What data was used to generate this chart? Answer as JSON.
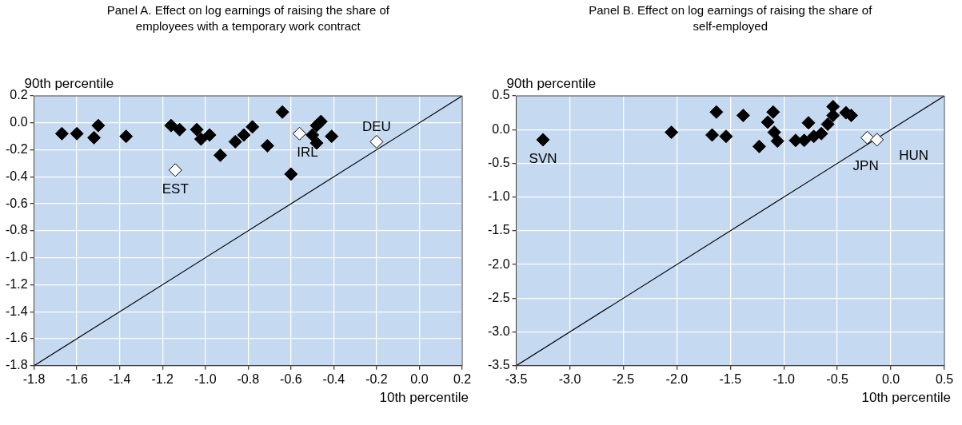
{
  "chart_data": [
    {
      "type": "scatter",
      "title": "Panel A. Effect on log earnings of raising the share of employees with a temporary work contract",
      "xlabel": "10th percentile",
      "ylabel": "90th percentile",
      "xlim": [
        -1.8,
        0.2
      ],
      "xticks": [
        -1.8,
        -1.6,
        -1.4,
        -1.2,
        {
          "value": -1,
          "label": "-1.0"
        },
        -0.8,
        -0.6,
        -0.4,
        -0.2,
        {
          "value": 0,
          "label": "0.0"
        },
        0.2
      ],
      "ylim": [
        -1.8,
        0.2
      ],
      "yticks": [
        -1.8,
        -1.6,
        -1.4,
        -1.2,
        {
          "value": -1,
          "label": "-1.0"
        },
        -0.8,
        -0.6,
        -0.4,
        -0.2,
        {
          "value": 0,
          "label": "0.0"
        },
        0.2
      ],
      "grid": true,
      "legend": false,
      "marker": "diamond",
      "series": [
        {
          "color": "#000000",
          "x": [
            -1.67,
            -1.6,
            -1.52,
            -1.5,
            -1.37,
            -1.16,
            -1.12,
            -1.04,
            -1.02,
            -0.98,
            -0.93,
            -0.86,
            -0.82,
            -0.78,
            -0.71,
            -0.64,
            -0.6,
            -0.48,
            -0.46,
            -0.5,
            -0.48,
            -0.41
          ],
          "values": [
            -0.08,
            -0.08,
            -0.11,
            -0.02,
            -0.1,
            -0.02,
            -0.05,
            -0.05,
            -0.12,
            -0.09,
            -0.24,
            -0.14,
            -0.09,
            -0.03,
            -0.17,
            0.08,
            -0.38,
            -0.02,
            0.01,
            -0.09,
            -0.15,
            -0.1
          ]
        },
        {
          "color": "#ffffff",
          "x": [
            -1.14,
            -0.56,
            -0.2
          ],
          "values": [
            -0.35,
            -0.08,
            -0.14
          ]
        },
        {
          "type": "line",
          "color": "#000000",
          "marker": "none",
          "x": [
            -1.8,
            0.2
          ],
          "values": [
            -1.8,
            0.2
          ]
        }
      ],
      "annotations": [
        {
          "text": "EST",
          "x": -1.14,
          "y": -0.35
        },
        {
          "text": "IRL",
          "x": -0.56,
          "y": -0.08
        },
        {
          "text": "DEU",
          "x": -0.2,
          "y": -0.14
        }
      ]
    },
    {
      "type": "scatter",
      "title": "Panel B. Effect on log earnings of raising the share of self-employed",
      "xlabel": "10th percentile",
      "ylabel": "90th percentile",
      "xlim": [
        -3.5,
        0.5
      ],
      "xticks": [
        -3.5,
        {
          "value": -3,
          "label": "-3.0"
        },
        -2.5,
        {
          "value": -2,
          "label": "-2.0"
        },
        -1.5,
        {
          "value": -1,
          "label": "-1.0"
        },
        -0.5,
        {
          "value": 0,
          "label": "0.0"
        },
        0.5
      ],
      "ylim": [
        -3.5,
        0.5
      ],
      "yticks": [
        -3.5,
        {
          "value": -3,
          "label": "-3.0"
        },
        -2.5,
        {
          "value": -2,
          "label": "-2.0"
        },
        -1.5,
        {
          "value": -1,
          "label": "-1.0"
        },
        -0.5,
        {
          "value": 0,
          "label": "0.0"
        },
        0.5
      ],
      "grid": true,
      "legend": false,
      "marker": "diamond",
      "series": [
        {
          "color": "#000000",
          "x": [
            -3.25,
            -2.05,
            -1.63,
            -1.67,
            -1.54,
            -1.38,
            -1.1,
            -1.15,
            -1.09,
            -1.06,
            -1.23,
            -0.89,
            -0.81,
            -0.77,
            -0.72,
            -0.65,
            -0.59,
            -0.54,
            -0.54,
            -0.42,
            -0.37
          ],
          "values": [
            -0.15,
            -0.04,
            0.26,
            -0.08,
            -0.1,
            0.21,
            0.26,
            0.11,
            -0.04,
            -0.17,
            -0.25,
            -0.16,
            -0.16,
            0.1,
            -0.1,
            -0.06,
            0.08,
            0.21,
            0.34,
            0.25,
            0.21
          ]
        },
        {
          "color": "#ffffff",
          "x": [
            -0.22,
            -0.13
          ],
          "values": [
            -0.12,
            -0.15
          ]
        },
        {
          "type": "line",
          "color": "#000000",
          "marker": "none",
          "x": [
            -3.5,
            0.5
          ],
          "values": [
            -3.5,
            0.5
          ]
        }
      ],
      "annotations": [
        {
          "text": "SVN",
          "x": -3.25,
          "y": -0.15
        },
        {
          "text": "JPN",
          "x": -0.22,
          "y": -0.12
        },
        {
          "text": "HUN",
          "x": -0.13,
          "y": -0.15
        }
      ]
    }
  ]
}
